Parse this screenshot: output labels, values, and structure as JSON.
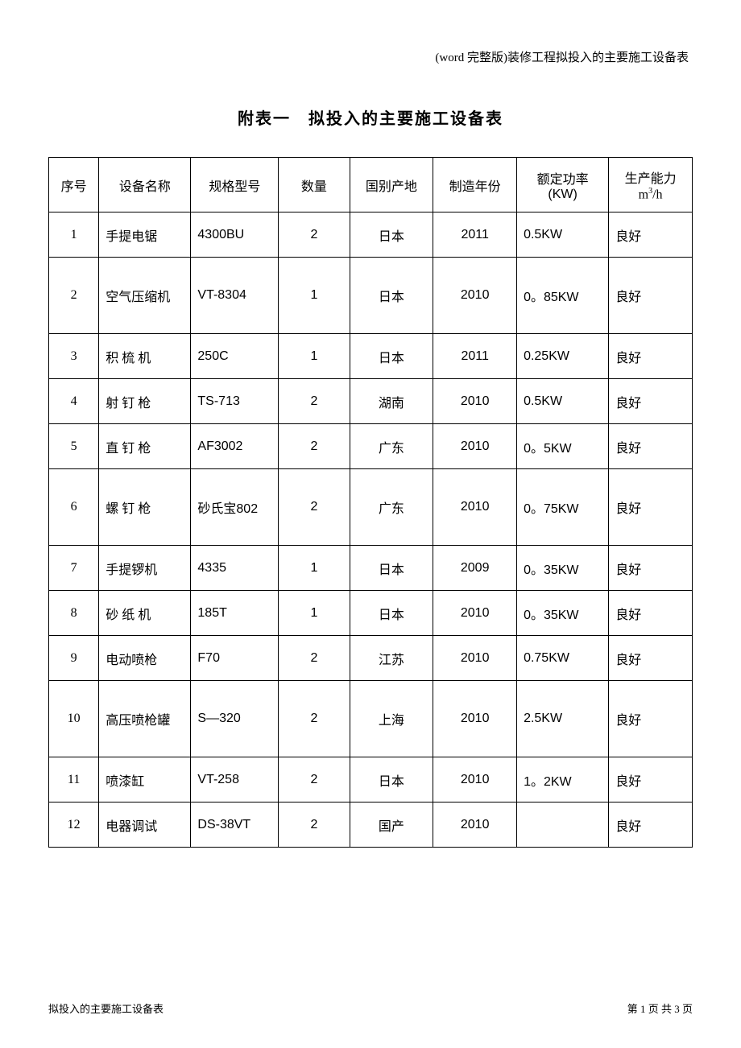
{
  "header_text": "(word 完整版)装修工程拟投入的主要施工设备表",
  "title": "附表一　拟投入的主要施工设备表",
  "table": {
    "columns": [
      "序号",
      "设备名称",
      "规格型号",
      "数量",
      "国别产地",
      "制造年份",
      "额定功率(KW)",
      "生产能力m³/h"
    ],
    "rows": [
      {
        "seq": "1",
        "name": "手提电锯",
        "model": "4300BU",
        "qty": "2",
        "origin": "日本",
        "year": "2011",
        "power": "0.5KW",
        "capacity": "良好",
        "tall": false
      },
      {
        "seq": "2",
        "name": "空气压缩机",
        "model": "VT-8304",
        "qty": "1",
        "origin": "日本",
        "year": "2010",
        "power": "0。85KW",
        "capacity": "良好",
        "tall": true
      },
      {
        "seq": "3",
        "name": "积 梳 机",
        "model": "250C",
        "qty": "1",
        "origin": "日本",
        "year": "2011",
        "power": "0.25KW",
        "capacity": "良好",
        "tall": false
      },
      {
        "seq": "4",
        "name": "射 钉 枪",
        "model": "TS-713",
        "qty": "2",
        "origin": "湖南",
        "year": "2010",
        "power": "0.5KW",
        "capacity": "良好",
        "tall": false
      },
      {
        "seq": "5",
        "name": "直 钉 枪",
        "model": "AF3002",
        "qty": "2",
        "origin": "广东",
        "year": "2010",
        "power": "0。5KW",
        "capacity": "良好",
        "tall": false
      },
      {
        "seq": "6",
        "name": "螺 钉 枪",
        "model": "砂氏宝802",
        "qty": "2",
        "origin": "广东",
        "year": "2010",
        "power": "0。75KW",
        "capacity": "良好",
        "tall": true
      },
      {
        "seq": "7",
        "name": "手提锣机",
        "model": "4335",
        "qty": "1",
        "origin": "日本",
        "year": "2009",
        "power": "0。35KW",
        "capacity": "良好",
        "tall": false
      },
      {
        "seq": "8",
        "name": "砂 纸 机",
        "model": "185T",
        "qty": "1",
        "origin": "日本",
        "year": "2010",
        "power": "0。35KW",
        "capacity": "良好",
        "tall": false
      },
      {
        "seq": "9",
        "name": "电动喷枪",
        "model": "F70",
        "qty": "2",
        "origin": "江苏",
        "year": "2010",
        "power": "0.75KW",
        "capacity": "良好",
        "tall": false
      },
      {
        "seq": "10",
        "name": "高压喷枪罐",
        "model": "S—320",
        "qty": "2",
        "origin": "上海",
        "year": "2010",
        "power": "2.5KW",
        "capacity": "良好",
        "tall": true
      },
      {
        "seq": "11",
        "name": "喷漆缸",
        "model": "VT-258",
        "qty": "2",
        "origin": "日本",
        "year": "2010",
        "power": "1。2KW",
        "capacity": "良好",
        "tall": false
      },
      {
        "seq": "12",
        "name": "电器调试",
        "model": "DS-38VT",
        "qty": "2",
        "origin": "国产",
        "year": "2010",
        "power": "",
        "capacity": "良好",
        "tall": false
      }
    ],
    "border_color": "#000000",
    "background_color": "#ffffff",
    "text_color": "#000000",
    "font_size": 16,
    "header_font_size": 16
  },
  "footer": {
    "left": "拟投入的主要施工设备表",
    "right": "第 1 页 共 3 页"
  }
}
